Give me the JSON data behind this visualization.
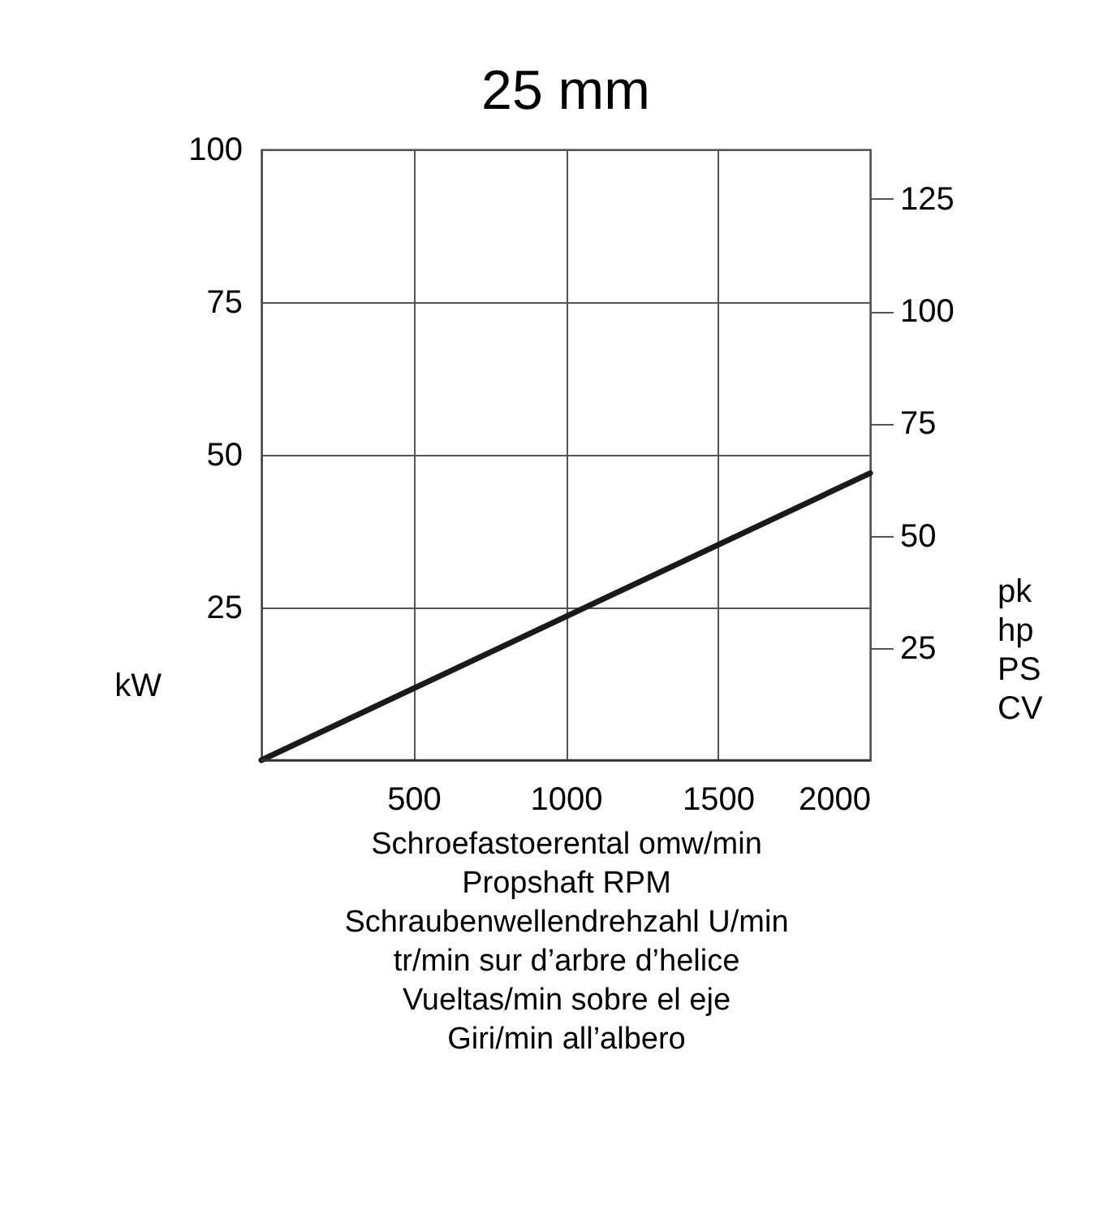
{
  "chart_data": {
    "type": "line",
    "title": "25 mm",
    "xlabel": "Schroefastoerental  omw/min\nPropshaft RPM\nSchraubenwellendrehzahl  U/min\ntr/min sur d’arbre d’helice\nVueltas/min sobre el eje\nGiri/min all’albero",
    "ylabel": "kW",
    "y2label": "pk\nhp\nPS\nCV",
    "x": [
      0,
      2000
    ],
    "series": [
      {
        "color": "#1a1a1a",
        "values": [
          0,
          47
        ]
      }
    ],
    "xlim": [
      0,
      2000
    ],
    "xticks": [
      500,
      1000,
      1500,
      2000
    ],
    "ylim": [
      0,
      100
    ],
    "yticks": [
      25,
      50,
      75,
      100
    ],
    "y2lim": [
      0,
      136
    ],
    "y2ticks": [
      25,
      50,
      75,
      100,
      125
    ],
    "grid": true,
    "marker": "none",
    "line_style": "solid"
  }
}
